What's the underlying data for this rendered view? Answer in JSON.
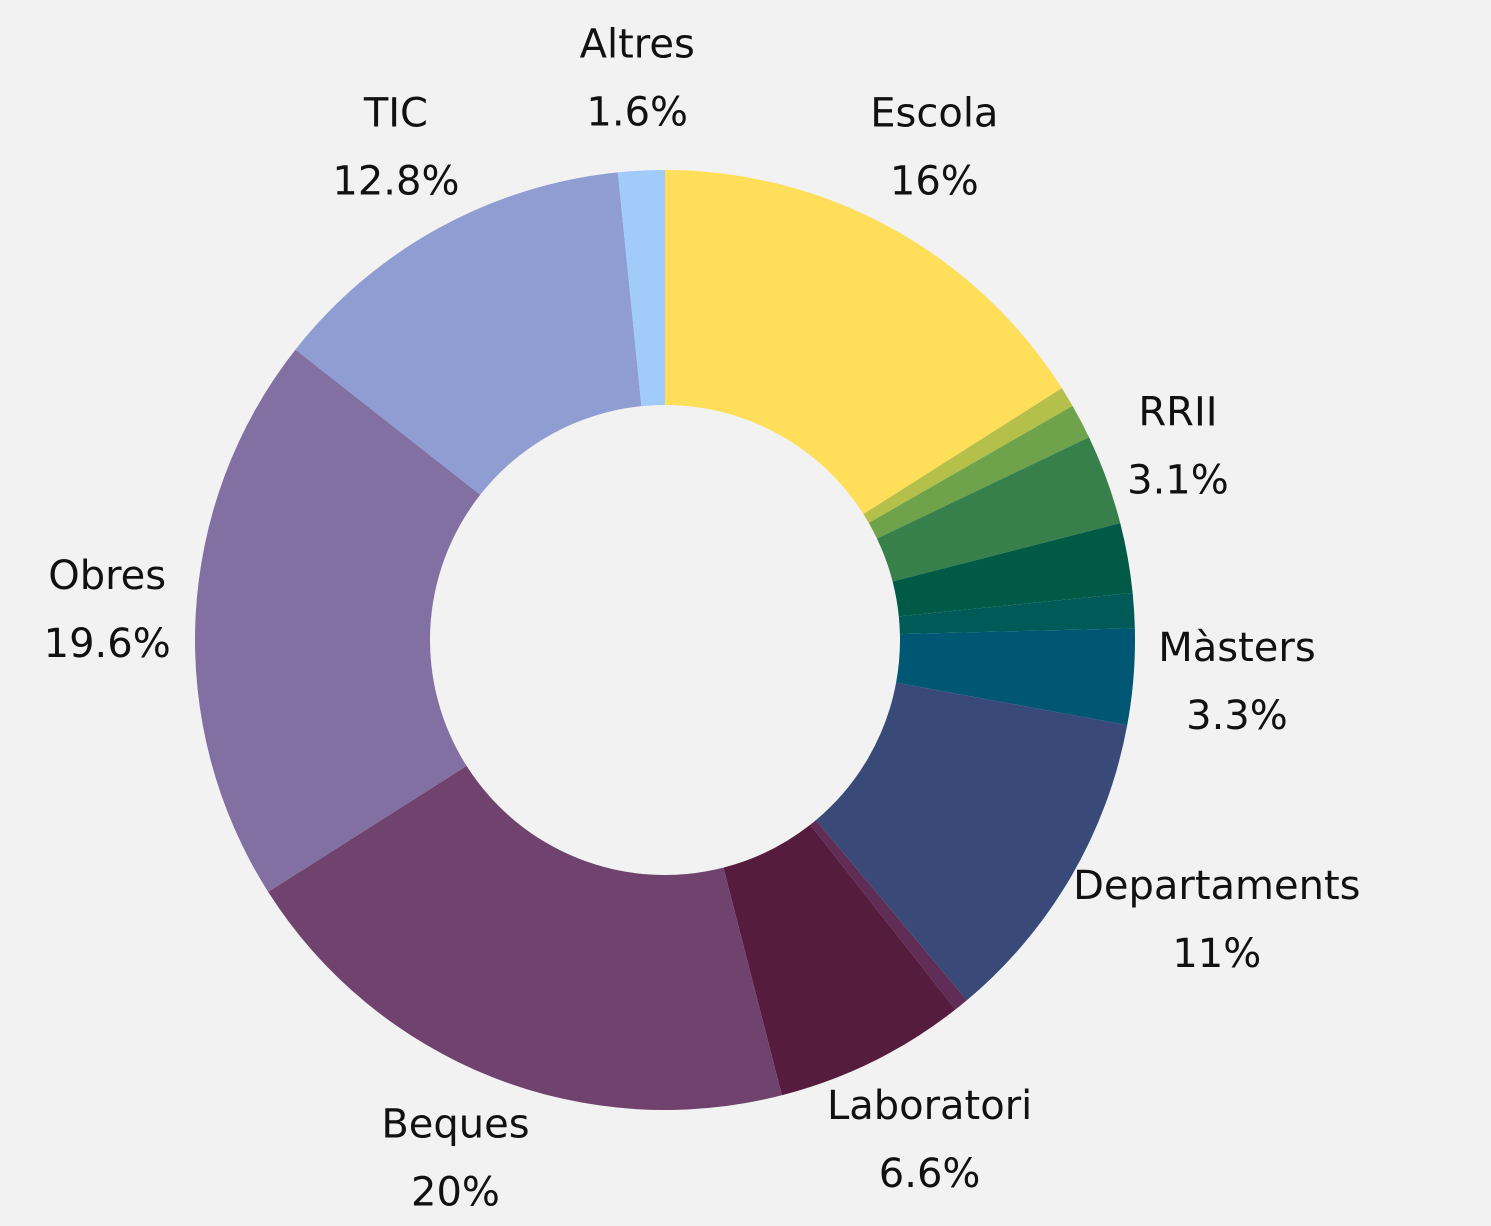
{
  "chart_data": {
    "type": "donut",
    "categories": [
      "Escola",
      null,
      null,
      "RRII",
      null,
      null,
      "Màsters",
      "Departaments",
      null,
      "Laboratori",
      "Beques",
      "Obres",
      "TIC",
      "Altres"
    ],
    "values": [
      16,
      0.7,
      1.2,
      3.1,
      2.4,
      1.2,
      3.3,
      11,
      0.5,
      6.6,
      20,
      19.6,
      12.8,
      1.6
    ],
    "value_labels": [
      "16%",
      null,
      null,
      "3.1%",
      null,
      null,
      "3.3%",
      "11%",
      null,
      "6.6%",
      "20%",
      "19.6%",
      "12.8%",
      "1.6%"
    ],
    "colors": [
      "#ffde59",
      "#b5c04a",
      "#6ea34b",
      "#37804c",
      "#005a45",
      "#005a58",
      "#005774",
      "#394978",
      "#5f2d55",
      "#561c3e",
      "#6f436e",
      "#8170a1",
      "#8f9dd2",
      "#a0cbfa"
    ]
  }
}
